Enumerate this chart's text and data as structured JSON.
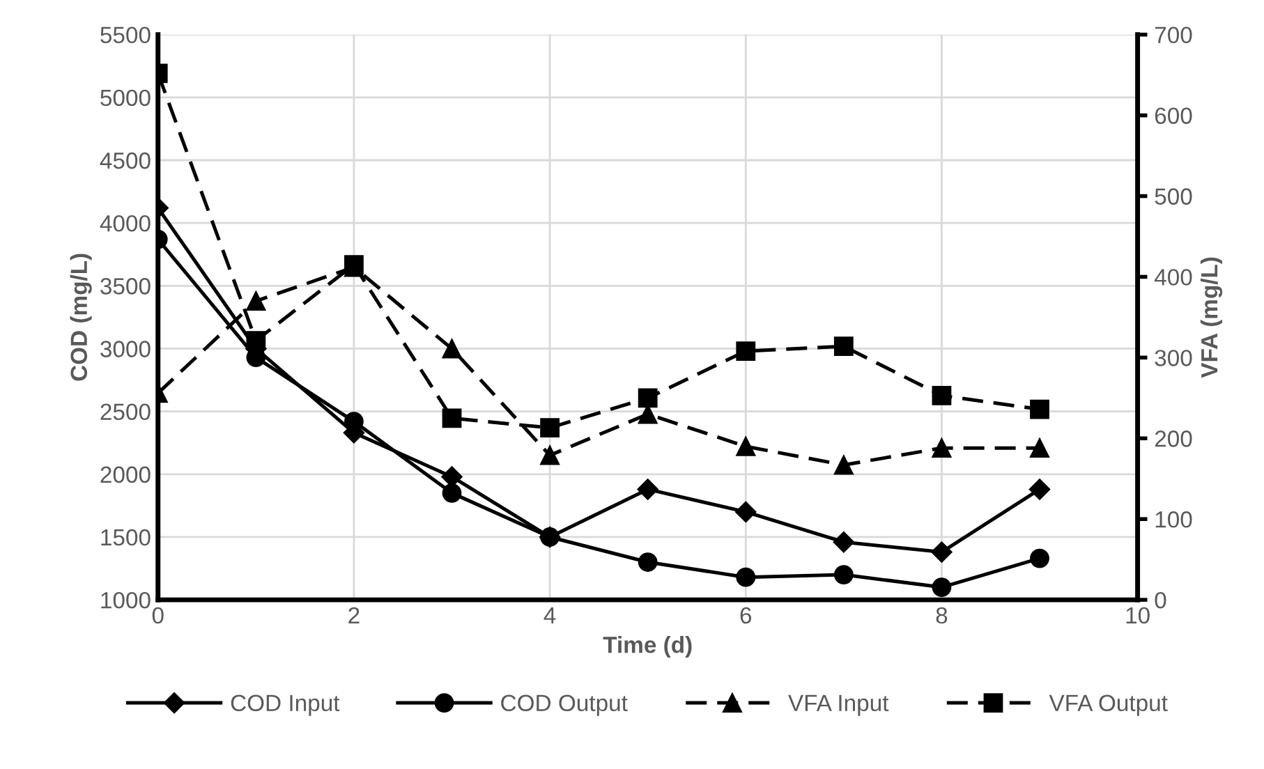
{
  "chart_data": {
    "type": "line",
    "xlabel": "Time (d)",
    "ylabel": "COD (mg/L)",
    "y2label": "VFA (mg/L)",
    "x": [
      0,
      1,
      2,
      3,
      4,
      5,
      6,
      7,
      8,
      9
    ],
    "xlim": [
      0,
      10
    ],
    "xticks": [
      0,
      2,
      4,
      6,
      8,
      10
    ],
    "ylim": [
      1000,
      5500
    ],
    "yticks": [
      1000,
      1500,
      2000,
      2500,
      3000,
      3500,
      4000,
      4500,
      5000,
      5500
    ],
    "y2lim": [
      0,
      700
    ],
    "y2ticks": [
      0,
      100,
      200,
      300,
      400,
      500,
      600,
      700
    ],
    "grid": true,
    "legend": "bottom",
    "series": [
      {
        "name": "COD Input",
        "color": "#000000",
        "marker": "diamond",
        "line_style": "solid",
        "values": [
          4120,
          3000,
          2330,
          1980,
          1500,
          1880,
          1700,
          1460,
          1380,
          1880
        ]
      },
      {
        "name": "COD Output",
        "color": "#000000",
        "marker": "circle",
        "line_style": "solid",
        "values": [
          3870,
          2930,
          2420,
          1850,
          1500,
          1300,
          1180,
          1200,
          1100,
          1330
        ]
      },
      {
        "name": "VFA Input",
        "color": "#000000",
        "marker": "triangle",
        "line_style": "dashed",
        "axis": "y2",
        "values": [
          256,
          370,
          412,
          311,
          179,
          230,
          190,
          167,
          188,
          188
        ]
      },
      {
        "name": "VFA Output",
        "color": "#000000",
        "marker": "square",
        "line_style": "dashed",
        "axis": "y2",
        "values": [
          652,
          321,
          415,
          225,
          213,
          250,
          308,
          314,
          253,
          236
        ]
      }
    ]
  }
}
